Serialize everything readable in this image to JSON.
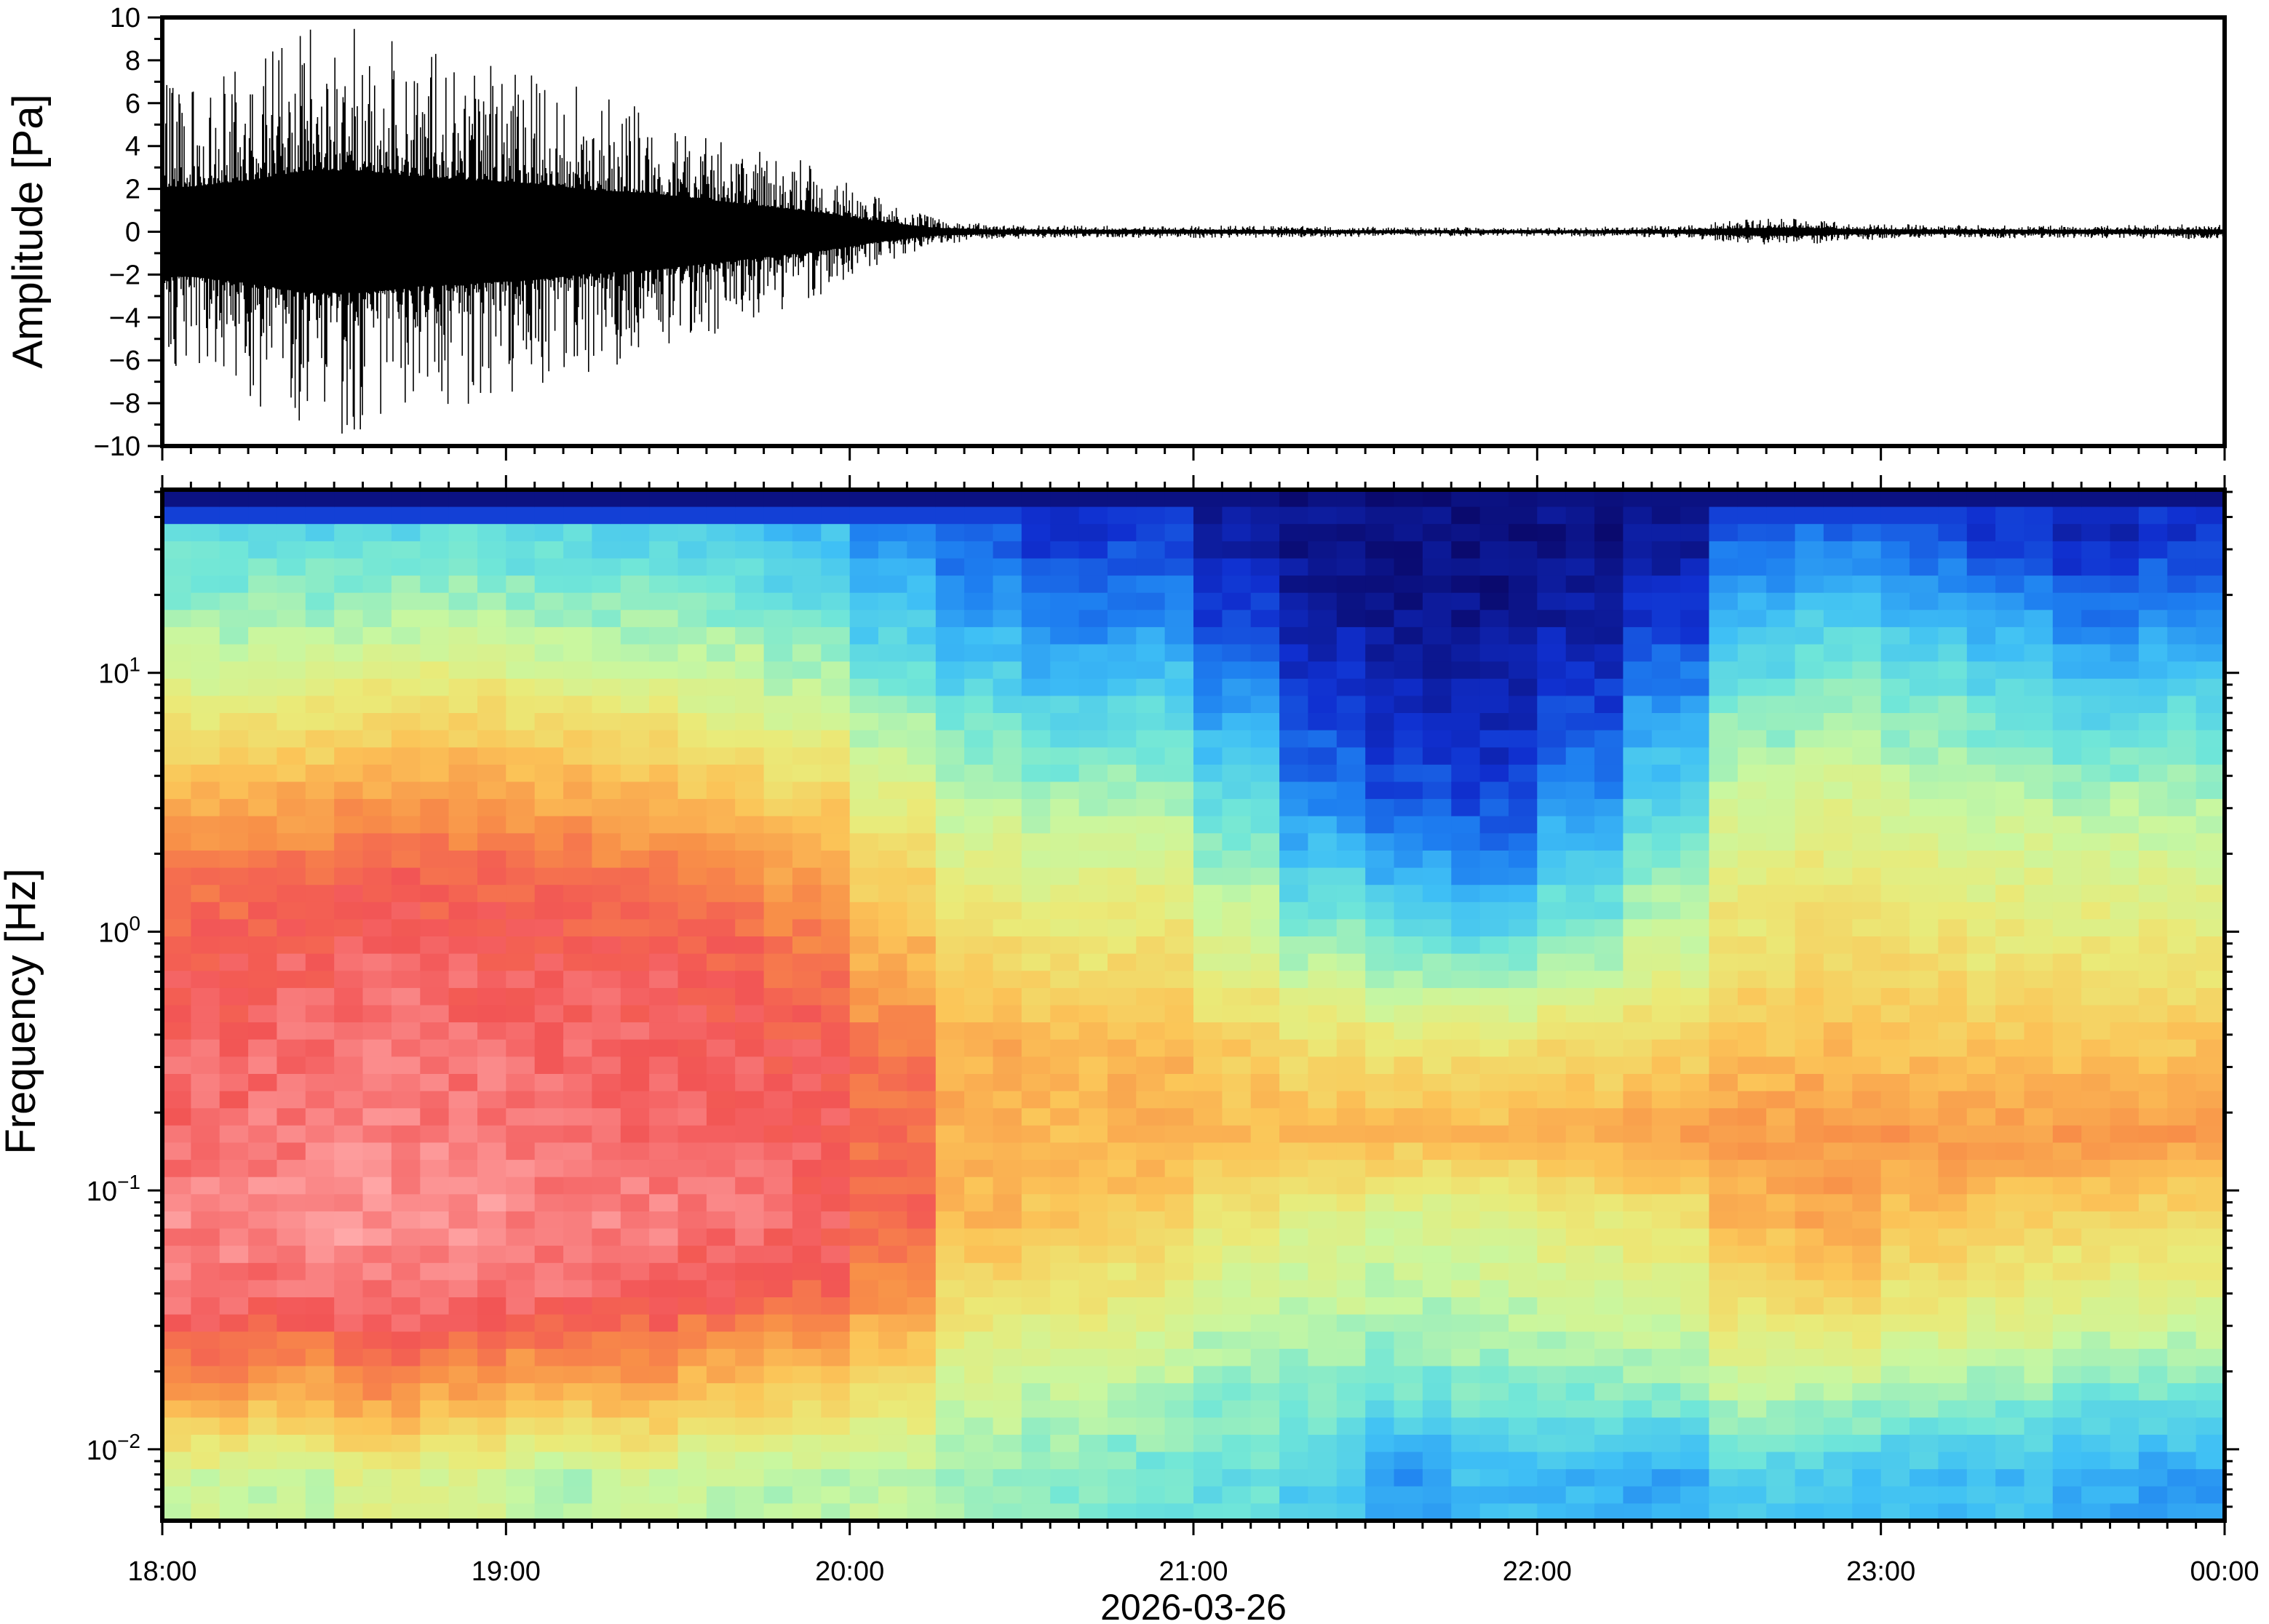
{
  "chart_data": [
    {
      "type": "line",
      "panel": "waveform",
      "ylabel": "Amplitude [Pa]",
      "ylim": [
        -10,
        10
      ],
      "yticks": [
        "10",
        "8",
        "6",
        "4",
        "2",
        "0",
        "−2",
        "−4",
        "−6",
        "−8",
        "−10"
      ],
      "ytick_values": [
        10,
        8,
        6,
        4,
        2,
        0,
        -2,
        -4,
        -6,
        -8,
        -10
      ],
      "xlim": [
        "18:00",
        "00:00"
      ],
      "envelope_interval_minutes": 10,
      "envelope_peak_pa": [
        7,
        8,
        9.5,
        9.5,
        8.5,
        8,
        7.5,
        6.5,
        6,
        5,
        4,
        3,
        1.6,
        0.6,
        0.35,
        0.3,
        0.3,
        0.3,
        0.3,
        0.28,
        0.25,
        0.22,
        0.22,
        0.22,
        0.22,
        0.25,
        0.3,
        0.55,
        0.65,
        0.4,
        0.35,
        0.32,
        0.3,
        0.3,
        0.32,
        0.35
      ]
    },
    {
      "type": "heatmap",
      "panel": "spectrogram",
      "ylabel": "Frequency [Hz]",
      "xlabel": "2026-03-26",
      "yscale": "log",
      "ylim_hz": [
        0.0053,
        51
      ],
      "yticks": [
        {
          "base": "10",
          "exp": "1",
          "value": 10
        },
        {
          "base": "10",
          "exp": "0",
          "value": 1
        },
        {
          "base": "10",
          "exp": "−1",
          "value": 0.1
        },
        {
          "base": "10",
          "exp": "−2",
          "value": 0.01
        }
      ],
      "xticks": [
        "18:00",
        "19:00",
        "20:00",
        "21:00",
        "22:00",
        "23:00",
        "00:00"
      ],
      "column_interval_minutes": 15,
      "row_center_hz": [
        36,
        17,
        8,
        3.6,
        1.7,
        0.8,
        0.36,
        0.17,
        0.08,
        0.036,
        0.017,
        0.008
      ],
      "relative_power": [
        [
          0.38,
          0.45,
          0.58,
          0.72,
          0.84,
          0.9,
          0.92,
          0.93,
          0.96,
          0.93,
          0.78,
          0.52
        ],
        [
          0.36,
          0.46,
          0.6,
          0.74,
          0.86,
          0.91,
          0.93,
          0.94,
          0.97,
          0.92,
          0.74,
          0.5
        ],
        [
          0.37,
          0.47,
          0.62,
          0.76,
          0.88,
          0.92,
          0.94,
          0.95,
          0.98,
          0.94,
          0.8,
          0.56
        ],
        [
          0.38,
          0.48,
          0.63,
          0.77,
          0.87,
          0.91,
          0.93,
          0.95,
          0.97,
          0.93,
          0.76,
          0.54
        ],
        [
          0.36,
          0.46,
          0.6,
          0.74,
          0.86,
          0.9,
          0.93,
          0.94,
          0.96,
          0.92,
          0.72,
          0.48
        ],
        [
          0.35,
          0.45,
          0.58,
          0.72,
          0.84,
          0.9,
          0.92,
          0.93,
          0.95,
          0.9,
          0.75,
          0.52
        ],
        [
          0.34,
          0.44,
          0.56,
          0.7,
          0.82,
          0.88,
          0.91,
          0.92,
          0.94,
          0.88,
          0.7,
          0.5
        ],
        [
          0.3,
          0.4,
          0.52,
          0.66,
          0.78,
          0.85,
          0.9,
          0.91,
          0.92,
          0.86,
          0.68,
          0.48
        ],
        [
          0.22,
          0.32,
          0.44,
          0.56,
          0.66,
          0.74,
          0.84,
          0.86,
          0.86,
          0.78,
          0.62,
          0.5
        ],
        [
          0.15,
          0.26,
          0.38,
          0.48,
          0.58,
          0.66,
          0.74,
          0.74,
          0.72,
          0.62,
          0.52,
          0.46
        ],
        [
          0.1,
          0.2,
          0.34,
          0.45,
          0.55,
          0.63,
          0.72,
          0.72,
          0.7,
          0.6,
          0.5,
          0.42
        ],
        [
          0.12,
          0.22,
          0.36,
          0.46,
          0.56,
          0.64,
          0.72,
          0.74,
          0.68,
          0.58,
          0.48,
          0.4
        ],
        [
          0.05,
          0.12,
          0.24,
          0.36,
          0.46,
          0.56,
          0.68,
          0.72,
          0.6,
          0.52,
          0.44,
          0.38
        ],
        [
          0.02,
          0.05,
          0.12,
          0.2,
          0.34,
          0.48,
          0.64,
          0.72,
          0.56,
          0.5,
          0.42,
          0.34
        ],
        [
          0.01,
          0.03,
          0.08,
          0.14,
          0.28,
          0.44,
          0.62,
          0.72,
          0.54,
          0.48,
          0.4,
          0.24
        ],
        [
          0.01,
          0.03,
          0.07,
          0.12,
          0.24,
          0.42,
          0.62,
          0.72,
          0.56,
          0.5,
          0.42,
          0.3
        ],
        [
          0.02,
          0.05,
          0.12,
          0.22,
          0.34,
          0.48,
          0.64,
          0.74,
          0.6,
          0.52,
          0.42,
          0.28
        ],
        [
          0.04,
          0.1,
          0.24,
          0.34,
          0.44,
          0.54,
          0.66,
          0.76,
          0.62,
          0.54,
          0.44,
          0.26
        ],
        [
          0.15,
          0.3,
          0.42,
          0.5,
          0.58,
          0.64,
          0.7,
          0.78,
          0.72,
          0.62,
          0.5,
          0.34
        ],
        [
          0.18,
          0.34,
          0.45,
          0.54,
          0.6,
          0.66,
          0.72,
          0.78,
          0.76,
          0.66,
          0.48,
          0.32
        ],
        [
          0.14,
          0.3,
          0.42,
          0.5,
          0.58,
          0.64,
          0.7,
          0.78,
          0.7,
          0.6,
          0.46,
          0.3
        ],
        [
          0.1,
          0.26,
          0.38,
          0.48,
          0.56,
          0.62,
          0.7,
          0.77,
          0.68,
          0.58,
          0.44,
          0.3
        ],
        [
          0.06,
          0.2,
          0.34,
          0.46,
          0.55,
          0.62,
          0.7,
          0.78,
          0.66,
          0.56,
          0.4,
          0.26
        ],
        [
          0.1,
          0.24,
          0.36,
          0.46,
          0.55,
          0.62,
          0.7,
          0.78,
          0.64,
          0.54,
          0.42,
          0.24
        ]
      ],
      "colormap": [
        "#0a0a6e",
        "#1030d0",
        "#1e7ff0",
        "#3fc0f5",
        "#70e6d8",
        "#c8f7a0",
        "#eaea78",
        "#fbc558",
        "#f89048",
        "#f25555",
        "#ffa8a8"
      ]
    }
  ]
}
